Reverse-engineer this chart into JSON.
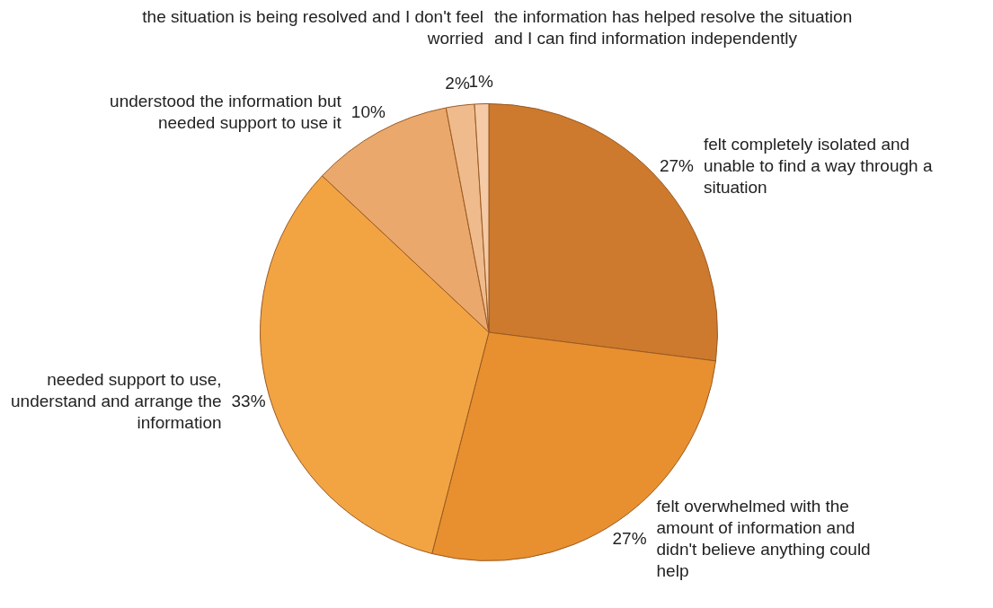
{
  "chart_data": {
    "type": "pie",
    "categories": [
      "felt completely isolated and unable to find a way through a situation",
      "felt overwhelmed with the amount of information and didn't believe anything could help",
      "needed support to use, understand and arrange the information",
      "understood the information but needed support to use it",
      "the situation is being resolved and I don't feel worried",
      "the information has helped resolve the situation and I can find information independently"
    ],
    "values": [
      27,
      27,
      33,
      10,
      2,
      1
    ],
    "colors": [
      "#cd7a2e",
      "#e8902f",
      "#f2a443",
      "#eaa86c",
      "#f0bb8c",
      "#f5caa6"
    ],
    "value_labels": [
      "27%",
      "27%",
      "33%",
      "10%",
      "2%",
      "1%"
    ],
    "legend": false
  }
}
